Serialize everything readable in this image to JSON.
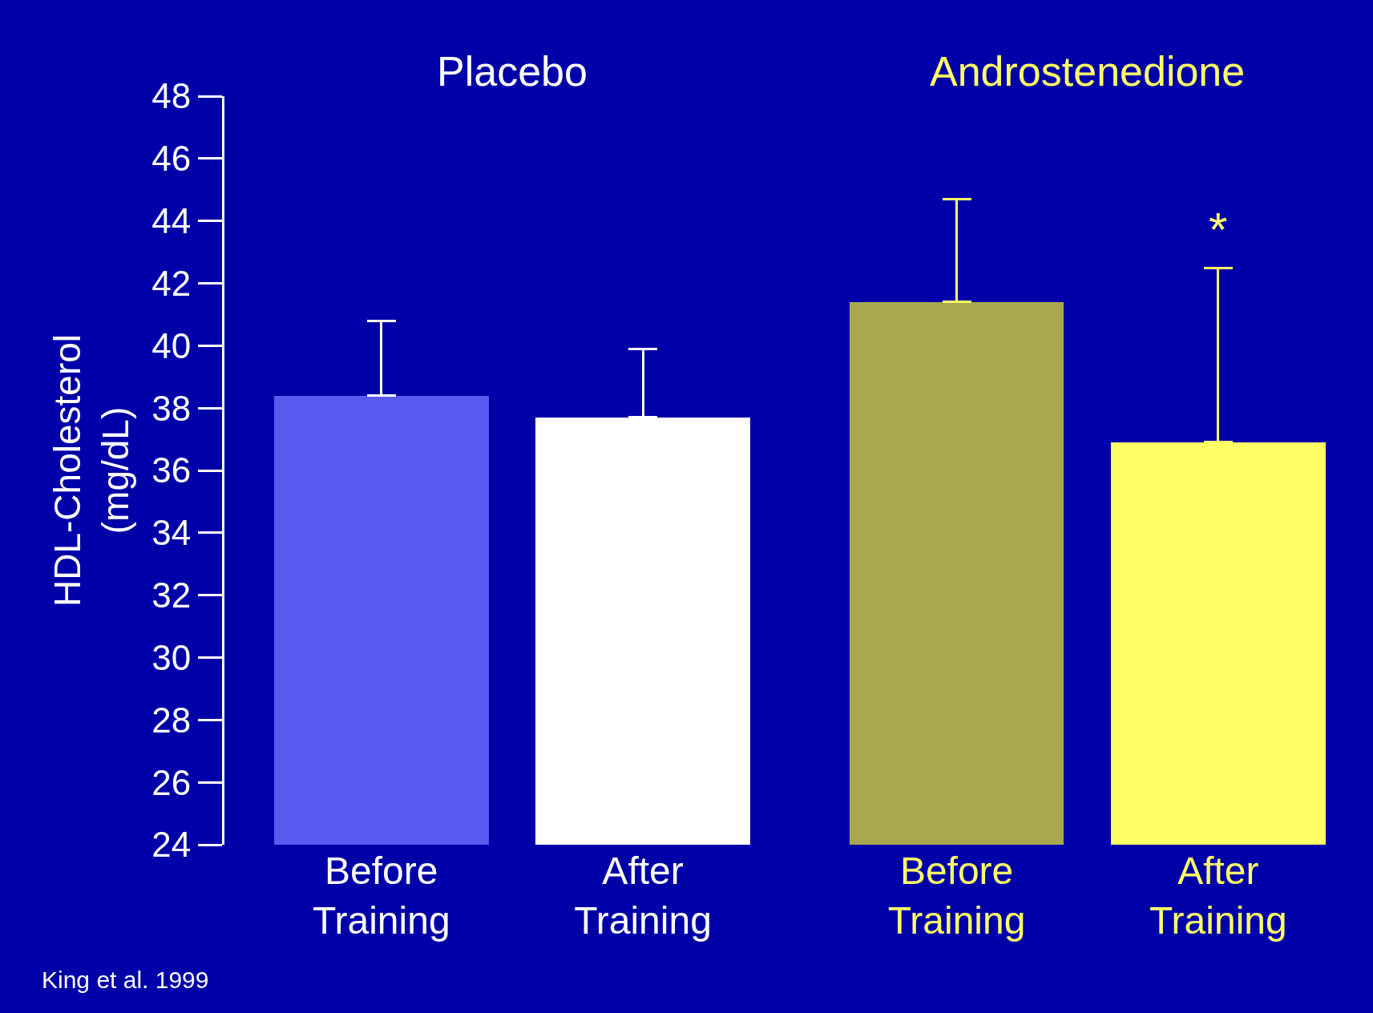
{
  "chart_data": {
    "type": "bar",
    "ylabel": "HDL-Cholesterol (mg/dL)",
    "categories": [
      "Before Training",
      "After Training",
      "Before Training",
      "After Training"
    ],
    "values": [
      38.4,
      37.7,
      41.4,
      36.9
    ],
    "errors": [
      [
        38.4,
        40.8
      ],
      [
        37.7,
        39.9
      ],
      [
        41.4,
        44.7
      ],
      [
        36.9,
        42.5
      ]
    ],
    "colors": [
      "#5a5af0",
      "#ffffff",
      "#a8a850",
      "#ffff66"
    ],
    "ylim": [
      24,
      48
    ],
    "yticks": [
      24,
      26,
      28,
      30,
      32,
      34,
      36,
      38,
      40,
      42,
      44,
      46,
      48
    ],
    "grid": false,
    "legend": false,
    "annotations": [
      "Placebo",
      "Androstenedione",
      "*",
      "King et al. 1999"
    ]
  }
}
